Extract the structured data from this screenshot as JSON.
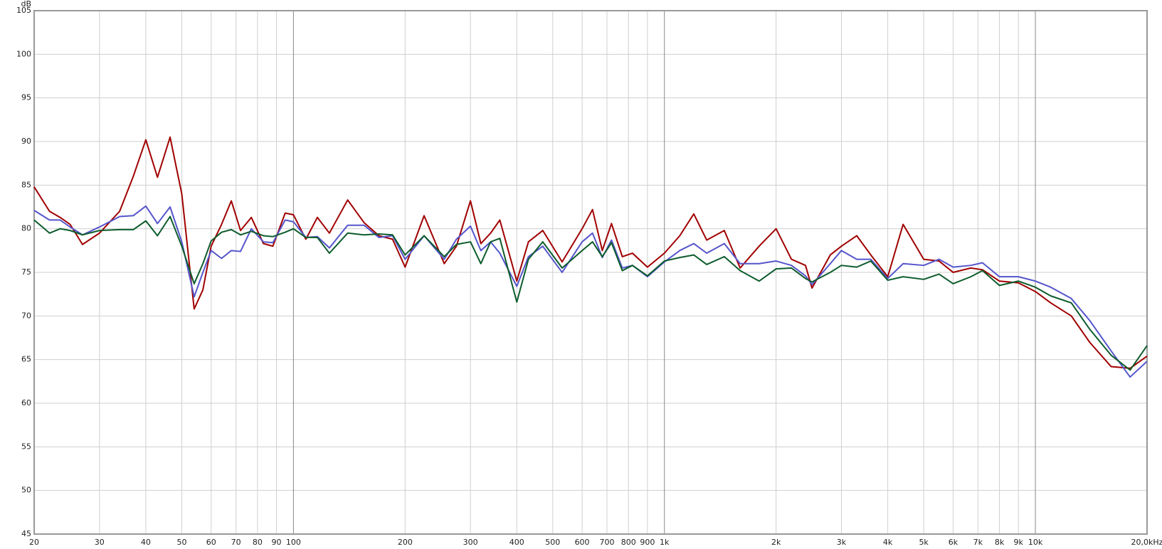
{
  "chart_data": {
    "type": "line",
    "y_label": "dB",
    "x_scale": "log",
    "grid": true,
    "x": [
      20,
      22,
      23.5,
      25,
      27,
      30,
      34,
      37,
      40,
      43,
      46.5,
      50,
      54,
      57,
      60,
      64,
      68,
      72,
      77,
      83,
      88,
      95,
      100,
      108,
      116,
      125,
      140,
      155,
      170,
      185,
      200,
      225,
      255,
      275,
      300,
      320,
      340,
      360,
      400,
      430,
      470,
      530,
      600,
      640,
      680,
      720,
      770,
      820,
      900,
      1000,
      1100,
      1200,
      1300,
      1450,
      1600,
      1800,
      2000,
      2200,
      2400,
      2500,
      2800,
      3000,
      3300,
      3600,
      4000,
      4400,
      5000,
      5500,
      6000,
      6700,
      7200,
      8000,
      9000,
      10000,
      11000,
      12500,
      14000,
      16000,
      18000,
      20000
    ],
    "series": [
      {
        "color": "#a00000",
        "values": [
          84.8,
          82,
          81.3,
          80.5,
          78.2,
          79.5,
          82,
          86,
          90.2,
          85.9,
          90.5,
          84,
          70.8,
          73,
          78,
          80.5,
          83.2,
          79.8,
          81.3,
          78.3,
          78,
          81.8,
          81.6,
          78.8,
          81.3,
          79.5,
          83.3,
          80.7,
          79.2,
          78.8,
          75.6,
          81.5,
          76,
          78,
          83.2,
          78.3,
          79.5,
          81,
          74,
          78.5,
          79.8,
          76.2,
          80,
          82.2,
          77.5,
          80.6,
          76.8,
          77.2,
          75.6,
          77.2,
          79.2,
          81.7,
          78.7,
          79.8,
          75.5,
          78,
          80,
          76.5,
          75.8,
          73.2,
          77,
          78,
          79.2,
          77,
          74.5,
          80.5,
          76.5,
          76.3,
          75,
          75.5,
          75.3,
          74,
          73.8,
          72.8,
          71.5,
          70,
          67,
          64.2,
          64,
          65.4
        ]
      },
      {
        "color": "#5555cc",
        "values": [
          82.1,
          81,
          81,
          80.2,
          79.3,
          80.2,
          81.4,
          81.5,
          82.6,
          80.6,
          82.5,
          78.5,
          72.2,
          75,
          77.5,
          76.6,
          77.5,
          77.4,
          80,
          78.5,
          78.4,
          81,
          80.8,
          79,
          79.1,
          77.8,
          80.4,
          80.4,
          79,
          79.2,
          76.5,
          79.2,
          76.5,
          78.8,
          80.3,
          77.5,
          78.5,
          77.2,
          73.4,
          76.8,
          78,
          75,
          78.5,
          79.5,
          76.7,
          78.7,
          75.5,
          75.8,
          74.5,
          76.2,
          77.5,
          78.3,
          77.2,
          78.3,
          76,
          76,
          76.3,
          75.8,
          74.6,
          73.6,
          76,
          77.5,
          76.5,
          76.5,
          74.3,
          76,
          75.8,
          76.5,
          75.6,
          75.8,
          76.1,
          74.5,
          74.5,
          74,
          73.3,
          72,
          69.5,
          66,
          63,
          64.8
        ]
      },
      {
        "color": "#0d5c2c",
        "values": [
          81,
          79.5,
          80,
          79.8,
          79.3,
          79.8,
          79.9,
          79.9,
          80.9,
          79.2,
          81.4,
          78,
          73.7,
          76,
          78.6,
          79.6,
          79.9,
          79.3,
          79.7,
          79.2,
          79.1,
          79.6,
          80,
          79,
          79,
          77.2,
          79.5,
          79.3,
          79.4,
          79.3,
          77,
          79.2,
          76.8,
          78.2,
          78.5,
          76,
          78.5,
          78.9,
          71.6,
          76.5,
          78.5,
          75.5,
          77.5,
          78.5,
          76.8,
          78.4,
          75.2,
          75.8,
          74.6,
          76.3,
          76.7,
          77,
          75.9,
          76.8,
          75.2,
          74,
          75.4,
          75.5,
          74.3,
          73.9,
          75,
          75.8,
          75.6,
          76.3,
          74.1,
          74.5,
          74.2,
          74.8,
          73.7,
          74.5,
          75.2,
          73.5,
          74,
          73.3,
          72.3,
          71.5,
          68.5,
          65.5,
          63.8,
          66.6
        ]
      }
    ],
    "xlim": [
      20,
      20000
    ],
    "ylim": [
      45,
      105
    ],
    "yticks": [
      45,
      50,
      55,
      60,
      65,
      70,
      75,
      80,
      85,
      90,
      95,
      100,
      105
    ],
    "xticks": [
      20,
      30,
      40,
      50,
      60,
      70,
      80,
      90,
      100,
      200,
      300,
      400,
      500,
      600,
      700,
      800,
      900,
      {
        "value": 1000,
        "label": "1k"
      },
      {
        "value": 2000,
        "label": "2k"
      },
      {
        "value": 3000,
        "label": "3k"
      },
      {
        "value": 4000,
        "label": "4k"
      },
      {
        "value": 5000,
        "label": "5k"
      },
      {
        "value": 6000,
        "label": "6k"
      },
      {
        "value": 7000,
        "label": "7k"
      },
      {
        "value": 8000,
        "label": "8k"
      },
      {
        "value": 9000,
        "label": "9k"
      },
      {
        "value": 10000,
        "label": "10k"
      },
      {
        "value": 20000,
        "label": "20,0kHz"
      }
    ]
  }
}
